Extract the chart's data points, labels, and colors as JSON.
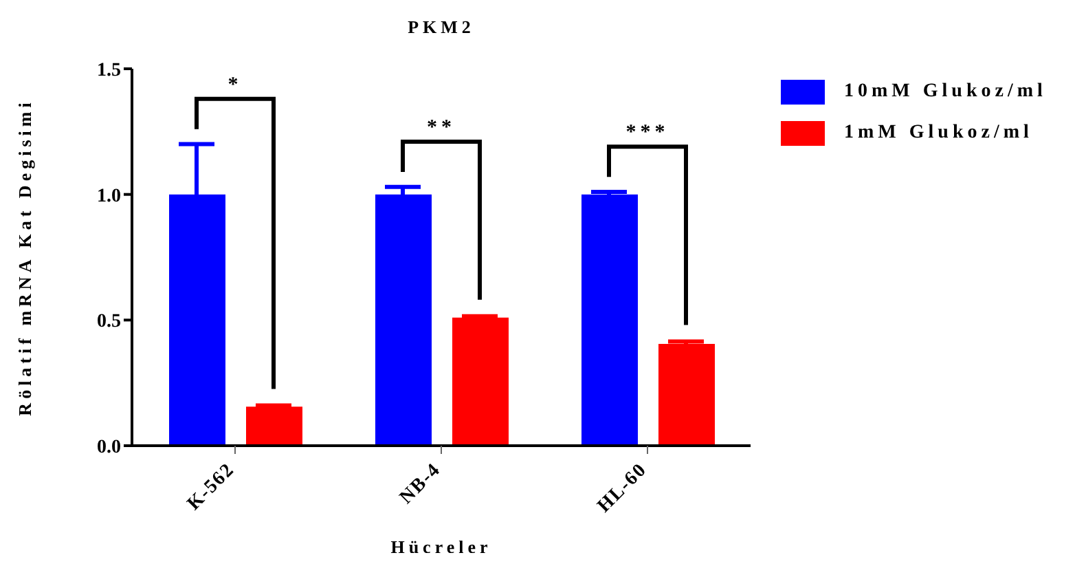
{
  "chart_data": {
    "type": "bar",
    "title": "PKM2",
    "xlabel": "Hücreler",
    "ylabel": "Rölatif mRNA Kat Degisimi",
    "categories": [
      "K-562",
      "NB-4",
      "HL-60"
    ],
    "series": [
      {
        "name": "10mM Glukoz/ml",
        "color": "#0000ff",
        "values": [
          1.0,
          1.0,
          1.0
        ],
        "errors": [
          0.2,
          0.03,
          0.01
        ]
      },
      {
        "name": "1mM Glukoz/ml",
        "color": "#ff0000",
        "values": [
          0.155,
          0.51,
          0.405
        ],
        "errors": [
          0.005,
          0.005,
          0.01
        ]
      }
    ],
    "annotations": [
      "*",
      "**",
      "***"
    ],
    "ylim": [
      0,
      1.5
    ],
    "yticks": [
      {
        "value": 0,
        "label": "0.0"
      },
      0.5,
      {
        "value": 1,
        "label": "1.0"
      },
      1.5
    ],
    "grid": false,
    "legend": "top right"
  }
}
